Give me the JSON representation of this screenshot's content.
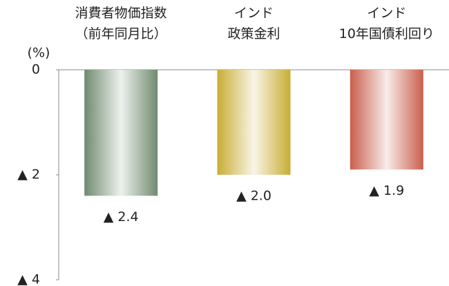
{
  "chart_data": {
    "type": "bar",
    "y_axis_label": "(%)",
    "categories": [
      "消費者物価指数\n（前年同月比）",
      "インド\n政策金利",
      "インド\n10年国債利回り"
    ],
    "values": [
      -2.4,
      -2.0,
      -1.9
    ],
    "value_labels": [
      "▲ 2.4",
      "▲ 2.0",
      "▲ 1.9"
    ],
    "colors": [
      "#6f8a6f",
      "#c9ad35",
      "#c95f4c"
    ],
    "ylim": [
      -4,
      0
    ],
    "yticks": [
      0,
      {
        "value": -2,
        "label": "▲ 2"
      },
      {
        "value": -4,
        "label": "▲ 4"
      }
    ]
  }
}
